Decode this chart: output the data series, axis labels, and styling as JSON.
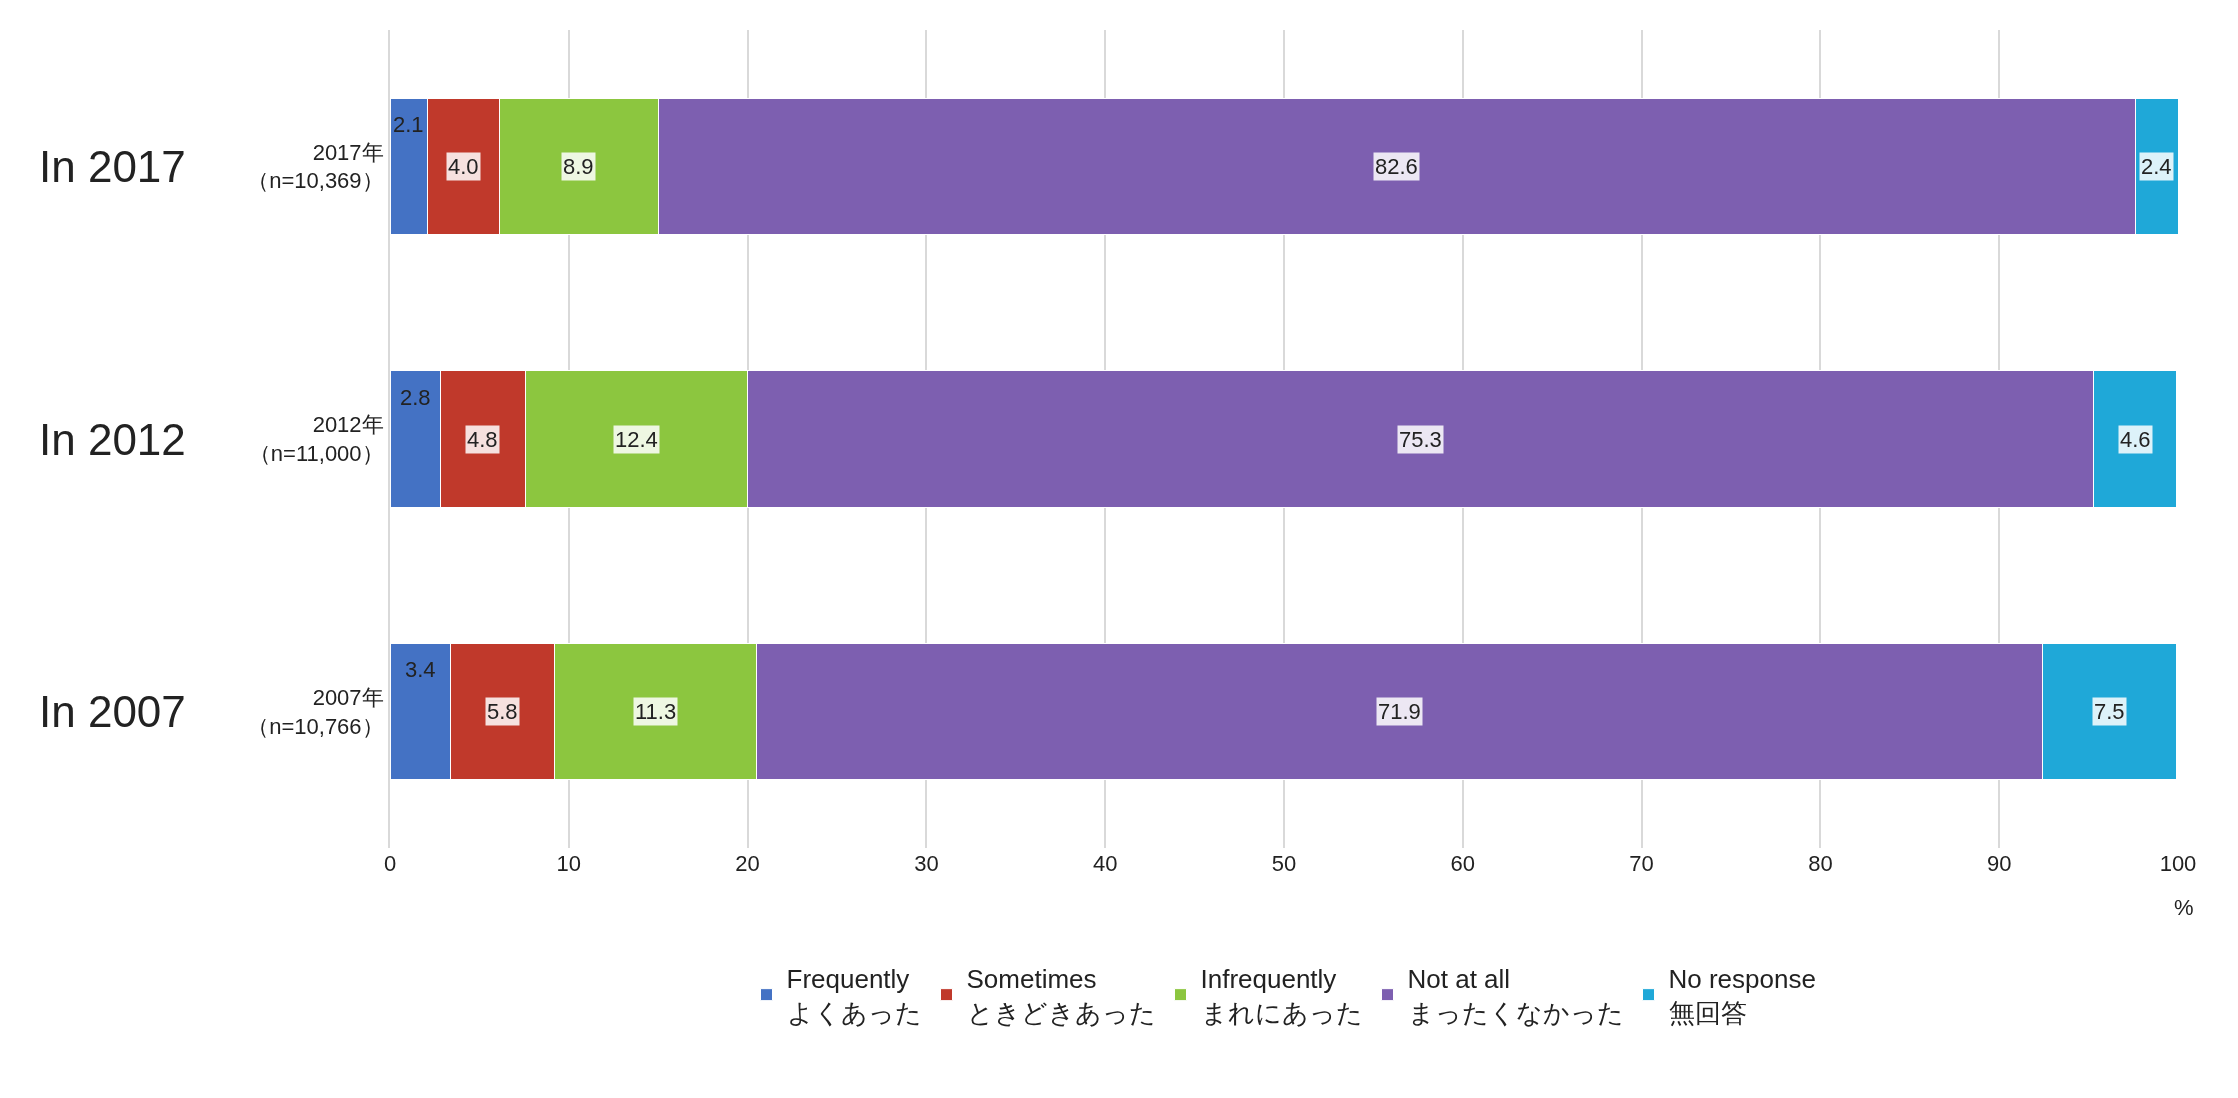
{
  "chart_data": {
    "type": "bar",
    "orientation": "horizontal",
    "stacked": true,
    "categories": [
      "2017年（n=10,369）",
      "2012年（n=11,000）",
      "2007年（n=10,766）"
    ],
    "series": [
      {
        "name": "Frequently\nよくあった",
        "color": "#4472c4",
        "values": [
          2.1,
          2.8,
          3.4
        ],
        "value_labels": [
          "2.1",
          "2.8",
          "3.4"
        ]
      },
      {
        "name": "Sometimes\nときどきあった",
        "color": "#c0392b",
        "values": [
          4.0,
          4.8,
          5.8
        ],
        "value_labels": [
          "4.0",
          "4.8",
          "5.8"
        ]
      },
      {
        "name": "Infrequently\nまれにあった",
        "color": "#8cc63f",
        "values": [
          8.9,
          12.4,
          11.3
        ],
        "value_labels": [
          "8.9",
          "12.4",
          "11.3"
        ]
      },
      {
        "name": "Not at all\nまったくなかった",
        "color": "#7d5fb0",
        "values": [
          82.6,
          75.3,
          71.9
        ],
        "value_labels": [
          "82.6",
          "75.3",
          "71.9"
        ]
      },
      {
        "name": "No response\n無回答",
        "color": "#1fa8d8",
        "values": [
          2.4,
          4.6,
          7.5
        ],
        "value_labels": [
          "2.4",
          "4.6",
          "7.5"
        ]
      }
    ],
    "annotations": [
      "In 2017",
      "In 2012",
      "In 2007"
    ],
    "xlabel": "%",
    "xlim": [
      0,
      100
    ],
    "xticks": [
      0,
      10,
      20,
      30,
      40,
      50,
      60,
      70,
      80,
      90,
      100
    ],
    "grid": "x",
    "legend": "bottom"
  }
}
